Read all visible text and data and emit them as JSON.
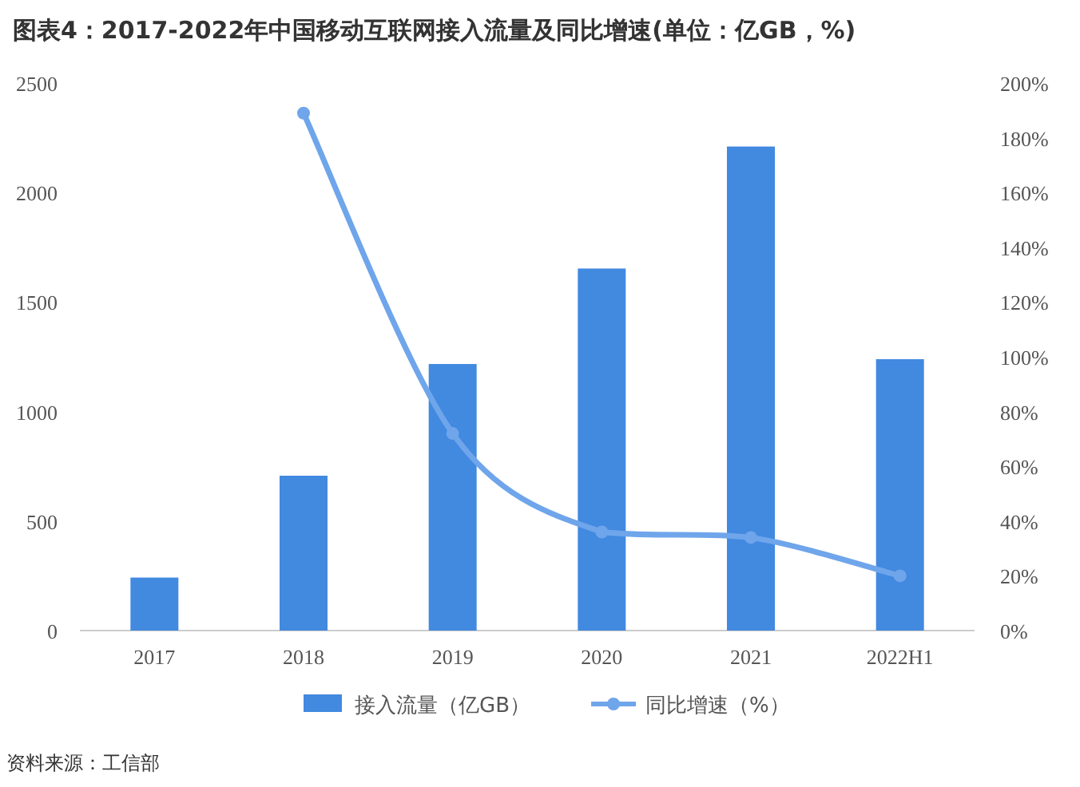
{
  "chart_data": {
    "type": "bar",
    "title": "图表4：2017-2022年中国移动互联网接入流量及同比增速(单位：亿GB，%)",
    "categories": [
      "2017",
      "2018",
      "2019",
      "2020",
      "2021",
      "2022H1"
    ],
    "series": [
      {
        "name": "接入流量（亿GB）",
        "color": "#4289e0",
        "values": [
          242,
          707,
          1217,
          1653,
          2210,
          1239
        ]
      },
      {
        "name": "同比增速（%）",
        "type": "line",
        "axis": "y2",
        "color": "#6fa5ea",
        "marker": "circle",
        "values": [
          null,
          189,
          72,
          36,
          34,
          20
        ]
      }
    ],
    "ylim": [
      0,
      2500
    ],
    "yticks": [
      0,
      500,
      1000,
      1500,
      2000,
      2500
    ],
    "y2lim": [
      0,
      200
    ],
    "y2ticks": [
      {
        "value": 0,
        "label": "0%"
      },
      {
        "value": 20,
        "label": "20%"
      },
      {
        "value": 40,
        "label": "40%"
      },
      {
        "value": 60,
        "label": "60%"
      },
      {
        "value": 80,
        "label": "80%"
      },
      {
        "value": 100,
        "label": "100%"
      },
      {
        "value": 120,
        "label": "120%"
      },
      {
        "value": 140,
        "label": "140%"
      },
      {
        "value": 160,
        "label": "160%"
      },
      {
        "value": 180,
        "label": "180%"
      },
      {
        "value": 200,
        "label": "200%"
      }
    ],
    "legend": "bottom",
    "annotations": [
      "资料来源：工信部"
    ]
  }
}
